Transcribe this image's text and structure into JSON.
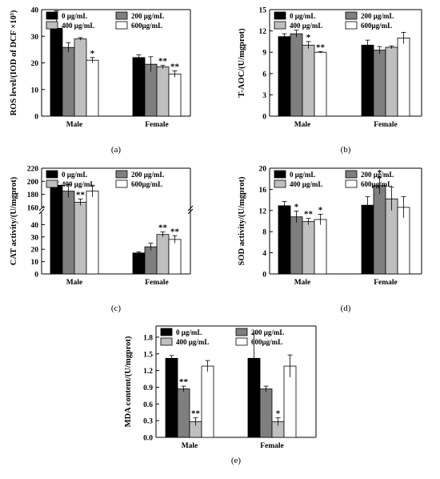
{
  "legend": {
    "labels": [
      "0 μg/mL",
      "200 μg/mL",
      "400 μg/mL",
      "600μg/mL"
    ],
    "colors": [
      "#000000",
      "#7f7f7f",
      "#bfbfbf",
      "#ffffff"
    ]
  },
  "chart_data": [
    {
      "type": "bar",
      "panel_label": "(a)",
      "ylabel": "ROS level/(IOD of DCF ×10⁵)",
      "categories": [
        "Male",
        "Female"
      ],
      "ylim": [
        0,
        40
      ],
      "yticks": [
        "0",
        "10",
        "20",
        "30",
        "40"
      ],
      "series": [
        {
          "name": "0 μg/mL",
          "values": [
            33.0,
            22.0
          ],
          "errors": [
            6.5,
            1.0
          ],
          "sig": [
            "",
            ""
          ]
        },
        {
          "name": "200 μg/mL",
          "values": [
            25.8,
            19.5
          ],
          "errors": [
            1.8,
            2.8
          ],
          "sig": [
            "",
            ""
          ]
        },
        {
          "name": "400 μg/mL",
          "values": [
            29.0,
            18.5
          ],
          "errors": [
            0.5,
            0.6
          ],
          "sig": [
            "",
            "**"
          ]
        },
        {
          "name": "600μg/mL",
          "values": [
            21.0,
            15.8
          ],
          "errors": [
            1.0,
            1.2
          ],
          "sig": [
            "*",
            "**"
          ]
        }
      ]
    },
    {
      "type": "bar",
      "panel_label": "(b)",
      "ylabel": "T-AOC/(U/mgprot)",
      "categories": [
        "Male",
        "Female"
      ],
      "ylim": [
        0,
        15
      ],
      "yticks": [
        "0",
        "3",
        "6",
        "9",
        "12",
        "15"
      ],
      "series": [
        {
          "name": "0 μg/mL",
          "values": [
            11.2,
            10.0
          ],
          "errors": [
            0.4,
            0.7
          ],
          "sig": [
            "",
            ""
          ]
        },
        {
          "name": "200 μg/mL",
          "values": [
            11.6,
            9.3
          ],
          "errors": [
            0.5,
            0.5
          ],
          "sig": [
            "",
            ""
          ]
        },
        {
          "name": "400 μg/mL",
          "values": [
            10.0,
            9.7
          ],
          "errors": [
            0.5,
            0.2
          ],
          "sig": [
            "*",
            ""
          ]
        },
        {
          "name": "600μg/mL",
          "values": [
            9.0,
            11.0
          ],
          "errors": [
            0.1,
            0.8
          ],
          "sig": [
            "**",
            ""
          ]
        }
      ]
    },
    {
      "type": "bar",
      "panel_label": "(c)",
      "ylabel": "CAT activity/(U/mgprot)",
      "categories": [
        "Male",
        "Female"
      ],
      "broken_axis": true,
      "ylim_lower": [
        0,
        50
      ],
      "ylim_upper": [
        160,
        220
      ],
      "yticks_lower": [
        "0",
        "10",
        "20",
        "30",
        "40"
      ],
      "yticks_upper": [
        "160",
        "180",
        "200",
        "220"
      ],
      "series": [
        {
          "name": "0 μg/mL",
          "values": [
            194,
            17
          ],
          "errors": [
            5,
            1
          ],
          "sig": [
            "",
            ""
          ]
        },
        {
          "name": "200 μg/mL",
          "values": [
            185,
            22
          ],
          "errors": [
            10,
            3
          ],
          "sig": [
            "",
            ""
          ]
        },
        {
          "name": "400 μg/mL",
          "values": [
            168,
            32
          ],
          "errors": [
            5,
            2
          ],
          "sig": [
            "**",
            "**"
          ]
        },
        {
          "name": "600μg/mL",
          "values": [
            185,
            28
          ],
          "errors": [
            9,
            3
          ],
          "sig": [
            "",
            "**"
          ]
        }
      ]
    },
    {
      "type": "bar",
      "panel_label": "(d)",
      "ylabel": "SOD activity/(U/mgprot)",
      "categories": [
        "Male",
        "Female"
      ],
      "ylim": [
        0,
        20
      ],
      "yticks": [
        "0",
        "4",
        "8",
        "12",
        "16",
        "20"
      ],
      "series": [
        {
          "name": "0 μg/mL",
          "values": [
            12.9,
            13.0
          ],
          "errors": [
            0.8,
            1.6
          ],
          "sig": [
            "",
            ""
          ]
        },
        {
          "name": "200 μg/mL",
          "values": [
            10.8,
            16.7
          ],
          "errors": [
            1.1,
            1.6
          ],
          "sig": [
            "*",
            "*"
          ]
        },
        {
          "name": "400 μg/mL",
          "values": [
            9.9,
            14.2
          ],
          "errors": [
            0.6,
            2.2
          ],
          "sig": [
            "**",
            ""
          ]
        },
        {
          "name": "600μg/mL",
          "values": [
            10.3,
            12.6
          ],
          "errors": [
            1.0,
            2.0
          ],
          "sig": [
            "*",
            ""
          ]
        }
      ]
    },
    {
      "type": "bar",
      "panel_label": "(e)",
      "ylabel": "MDA content/(U/mgprot)",
      "categories": [
        "Male",
        "Female"
      ],
      "ylim": [
        0,
        2.0
      ],
      "yticks": [
        "0.0",
        "0.3",
        "0.6",
        "0.9",
        "1.2",
        "1.5",
        "1.8"
      ],
      "series": [
        {
          "name": "0 μg/mL",
          "values": [
            1.42,
            1.42
          ],
          "errors": [
            0.05,
            0.45
          ],
          "sig": [
            "",
            ""
          ]
        },
        {
          "name": "200 μg/mL",
          "values": [
            0.87,
            0.87
          ],
          "errors": [
            0.05,
            0.05
          ],
          "sig": [
            "**",
            ""
          ]
        },
        {
          "name": "400 μg/mL",
          "values": [
            0.28,
            0.28
          ],
          "errors": [
            0.07,
            0.07
          ],
          "sig": [
            "**",
            "*"
          ]
        },
        {
          "name": "600μg/mL",
          "values": [
            1.28,
            1.28
          ],
          "errors": [
            0.1,
            0.2
          ],
          "sig": [
            "",
            ""
          ]
        }
      ]
    }
  ]
}
